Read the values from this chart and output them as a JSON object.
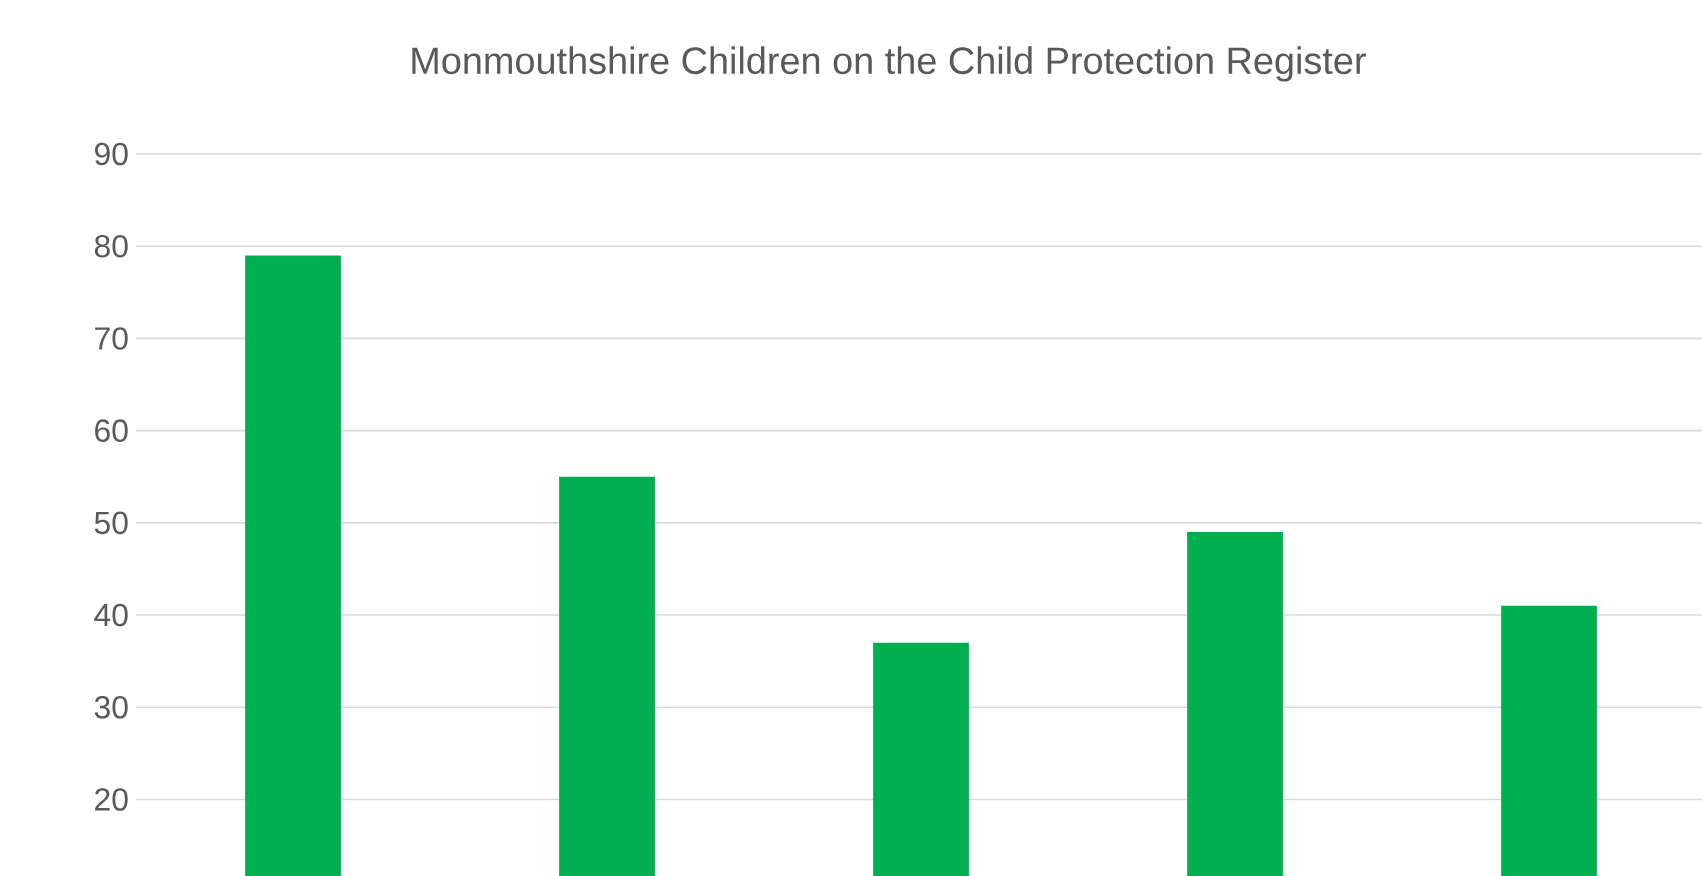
{
  "chart_data": {
    "type": "bar",
    "title": "Monmouthshire Children on the Child Protection Register",
    "categories": [
      null,
      null,
      null,
      null,
      null
    ],
    "values": [
      79,
      55,
      37,
      49,
      41
    ],
    "color": "#00b050",
    "ylim": [
      11.7,
      90
    ],
    "yticks": [
      20,
      30,
      40,
      50,
      60,
      70,
      80,
      90
    ],
    "grid": "y",
    "tick_labels": "y"
  }
}
